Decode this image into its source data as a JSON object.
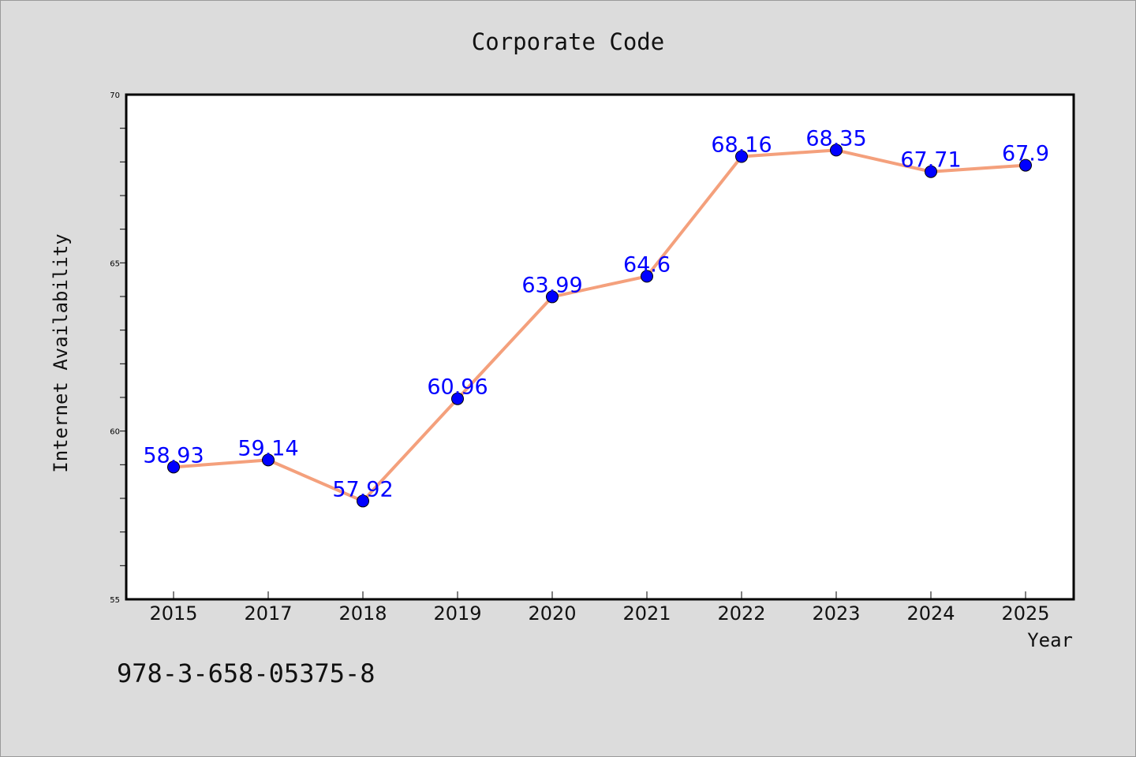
{
  "chart_data": {
    "type": "line",
    "title": "Corporate Code",
    "xlabel": "Year",
    "ylabel": "Internet Availability",
    "categories": [
      "2015",
      "2017",
      "2018",
      "2019",
      "2020",
      "2021",
      "2022",
      "2023",
      "2024",
      "2025"
    ],
    "series": [
      {
        "values": [
          58.93,
          59.14,
          57.92,
          60.96,
          63.99,
          64.6,
          68.16,
          68.35,
          67.71,
          67.9
        ],
        "labels": [
          "58.93",
          "59.14",
          "57.92",
          "60.96",
          "63.99",
          "64.6",
          "68.16",
          "68.35",
          "67.71",
          "67.9"
        ]
      }
    ],
    "ylim": [
      55,
      70
    ],
    "yticks": [
      "55",
      "60",
      "65",
      "70"
    ],
    "grid": false,
    "colors": {
      "line": "#f4a07c",
      "marker": "#0000ff",
      "data_label": "#0000ff",
      "background": "#dcdcdc",
      "plot_area": "#ffffff"
    },
    "annotation": "978-3-658-05375-8"
  }
}
